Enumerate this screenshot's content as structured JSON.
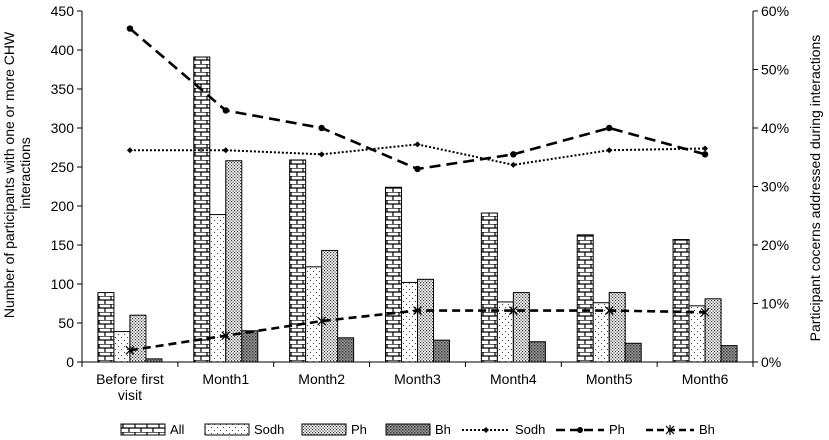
{
  "chart_data": {
    "type": "bar",
    "categories": [
      [
        "Before first",
        "visit"
      ],
      [
        "Month1"
      ],
      [
        "Month2"
      ],
      [
        "Month3"
      ],
      [
        "Month4"
      ],
      [
        "Month5"
      ],
      [
        "Month6"
      ]
    ],
    "y_left": {
      "label_lines": [
        "Number of participants with one or more CHW",
        "interactions"
      ],
      "range": [
        0,
        450
      ],
      "ticks": [
        0,
        50,
        100,
        150,
        200,
        250,
        300,
        350,
        400,
        450
      ],
      "tick_labels": [
        "0",
        "50",
        "100",
        "150",
        "200",
        "250",
        "300",
        "350",
        "400",
        "450"
      ]
    },
    "y_right": {
      "label": "Participant cocerns addressed during interactions",
      "range": [
        0,
        0.6
      ],
      "ticks": [
        0,
        0.1,
        0.2,
        0.3,
        0.4,
        0.5,
        0.6
      ],
      "tick_labels": [
        "0%",
        "10%",
        "20%",
        "30%",
        "40%",
        "50%",
        "60%"
      ]
    },
    "bar_series": [
      {
        "name": "All",
        "pattern": "brick",
        "values": [
          89,
          391,
          259,
          224,
          191,
          163,
          157
        ]
      },
      {
        "name": "Sodh",
        "pattern": "dots-sparse",
        "values": [
          39,
          189,
          122,
          102,
          77,
          76,
          72
        ]
      },
      {
        "name": "Ph",
        "pattern": "dots-dense",
        "values": [
          60,
          258,
          143,
          106,
          89,
          89,
          81
        ]
      },
      {
        "name": "Bh",
        "pattern": "dark",
        "values": [
          4,
          40,
          31,
          28,
          26,
          24,
          21
        ]
      }
    ],
    "line_series": [
      {
        "name": "Sodh",
        "style": "dotted",
        "marker": "diamond",
        "values": [
          0.362,
          0.362,
          0.355,
          0.372,
          0.337,
          0.362,
          0.365
        ]
      },
      {
        "name": "Ph",
        "style": "dashed",
        "marker": "circle",
        "values": [
          0.57,
          0.43,
          0.4,
          0.33,
          0.355,
          0.4,
          0.355
        ]
      },
      {
        "name": "Bh",
        "style": "dashed",
        "marker": "asterisk",
        "values": [
          0.02,
          0.045,
          0.07,
          0.088,
          0.088,
          0.088,
          0.085
        ]
      }
    ],
    "legend": {
      "position": "bottom"
    },
    "grid": false
  }
}
